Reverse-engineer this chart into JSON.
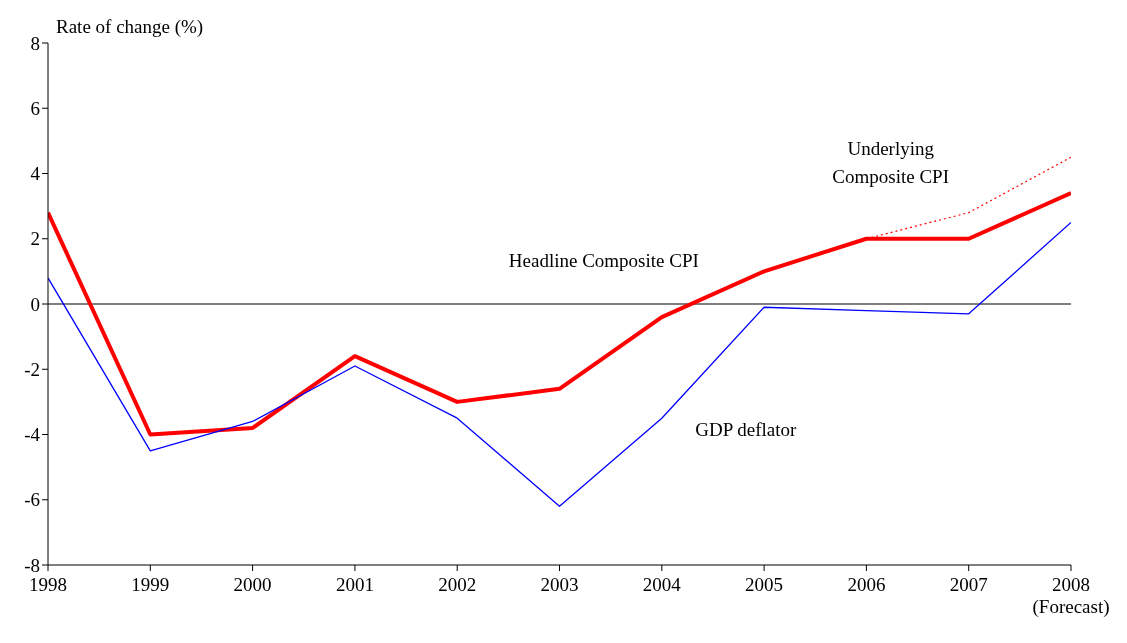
{
  "chart_data": {
    "type": "line",
    "ylabel": "Rate of change (%)",
    "x": [
      1998,
      1999,
      2000,
      2001,
      2002,
      2003,
      2004,
      2005,
      2006,
      2007,
      2008
    ],
    "series": [
      {
        "name": "Headline Composite CPI",
        "color": "#ff0000",
        "values": [
          2.8,
          -4.0,
          -3.8,
          -1.6,
          -3.0,
          -2.6,
          -0.4,
          1.0,
          2.0,
          2.0,
          3.4
        ]
      },
      {
        "name": "Underlying\nComposite CPI",
        "color": "#ff0000",
        "line_style": "dotted",
        "values": [
          null,
          null,
          null,
          null,
          null,
          null,
          null,
          null,
          2.0,
          2.8,
          4.5
        ]
      },
      {
        "name": "GDP deflator",
        "color": "#0000ff",
        "values": [
          0.8,
          -4.5,
          -3.6,
          -1.9,
          -3.5,
          -6.2,
          -3.5,
          -0.1,
          -0.2,
          -0.3,
          2.5
        ]
      }
    ],
    "xlim": [
      1998,
      2008
    ],
    "xticks": [
      1998,
      1999,
      2000,
      2001,
      2002,
      2003,
      2004,
      2005,
      2006,
      2007,
      {
        "value": 2008,
        "label": "2008\n(Forecast)"
      }
    ],
    "ylim": [
      -8,
      8
    ],
    "yticks": [
      -8,
      -6,
      -4,
      -2,
      0,
      2,
      4,
      6,
      8
    ],
    "ref_lines": [
      {
        "axis": "y",
        "value": 0,
        "color": "#000000"
      }
    ],
    "grid": false,
    "legend": false,
    "marker": "none",
    "line_style": "solid"
  }
}
